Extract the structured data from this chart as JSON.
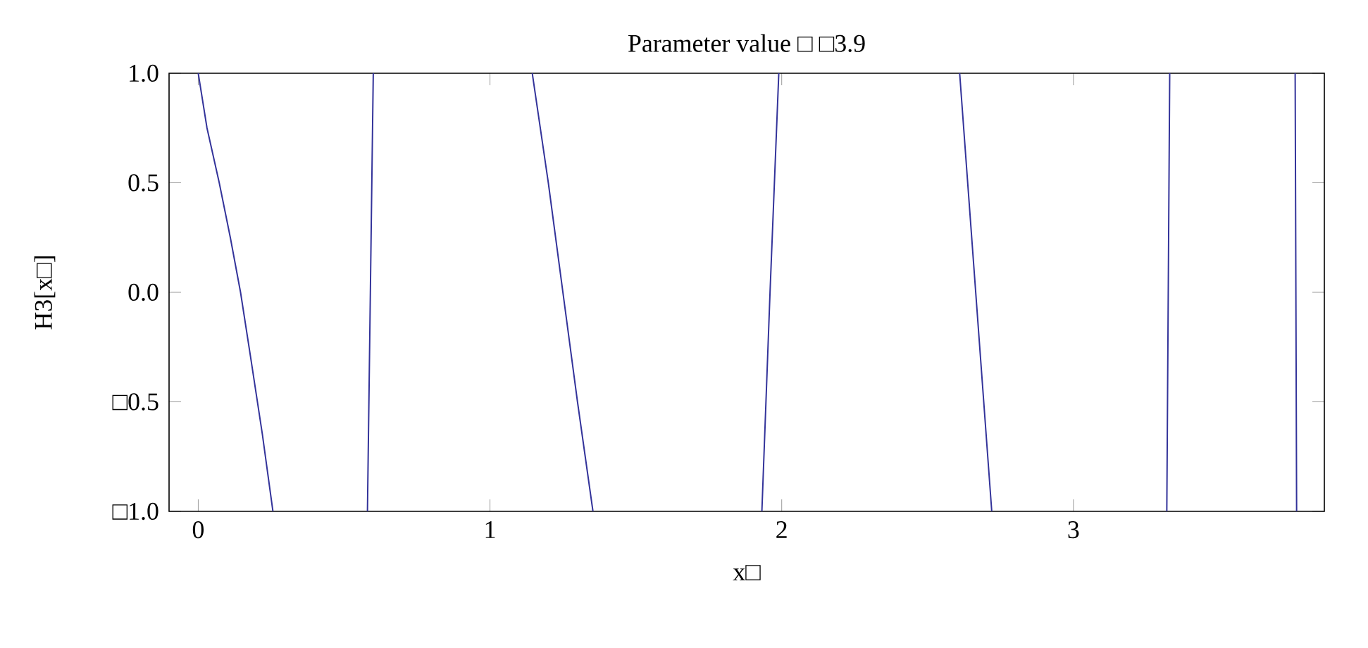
{
  "chart_data": {
    "type": "line",
    "title": "Parameter value □ □3.9",
    "xlabel": "x□",
    "ylabel": "H3[x□]",
    "series": [
      {
        "color": "#33339a",
        "x": [
          0,
          0.03,
          0.072,
          0.11,
          0.145,
          0.18,
          0.22,
          0.256,
          0.42,
          0.58,
          0.59,
          0.6,
          0.9,
          1.145,
          1.2,
          1.25,
          1.3,
          1.353,
          1.6,
          1.932,
          1.96,
          1.99,
          2.3,
          2.61,
          2.665,
          2.72,
          3.0,
          3.32,
          3.33,
          3.5,
          3.76,
          3.765
        ],
        "values": [
          1,
          0.75,
          0.5,
          0.25,
          0,
          -0.3,
          -0.65,
          -1,
          null,
          -1,
          0,
          1,
          null,
          1,
          0.5,
          0,
          -0.5,
          -1,
          null,
          -1,
          0,
          1,
          null,
          1,
          0,
          -1,
          null,
          -1,
          1,
          null,
          1,
          -1
        ]
      }
    ],
    "xlim": [
      -0.1,
      3.86
    ],
    "ylim": [
      -1,
      1
    ],
    "xticks": [
      0,
      1,
      2,
      3
    ],
    "yticks": [
      {
        "value": -1,
        "label": "□1.0"
      },
      {
        "value": -0.5,
        "label": "□0.5"
      },
      {
        "value": 0,
        "label": "0.0"
      },
      {
        "value": 0.5,
        "label": "0.5"
      },
      {
        "value": 1,
        "label": "1.0"
      }
    ],
    "grid": false,
    "marker": "none",
    "line_style": "solid"
  }
}
